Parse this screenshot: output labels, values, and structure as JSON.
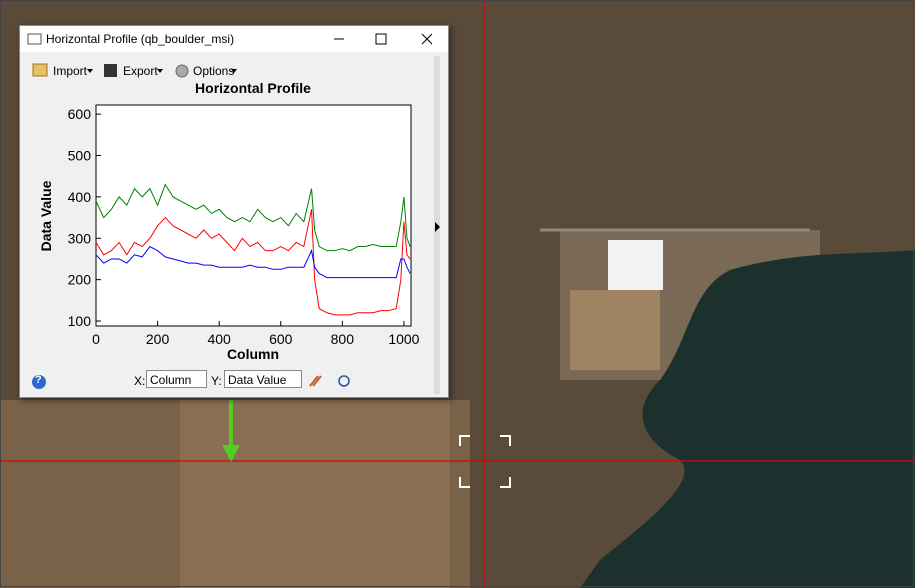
{
  "window": {
    "title": "Horizontal Profile (qb_boulder_msi)"
  },
  "toolbar": {
    "import": "Import",
    "export": "Export",
    "options": "Options"
  },
  "controls": {
    "help": "?",
    "x_label": "X:",
    "x_value": "Column",
    "y_label": "Y:",
    "y_value": "Data Value"
  },
  "chart_data": {
    "type": "line",
    "title": "Horizontal Profile",
    "x_label": "Column",
    "y_label": "Data Value",
    "x": [
      0,
      25,
      50,
      75,
      100,
      125,
      150,
      175,
      200,
      225,
      250,
      275,
      300,
      325,
      350,
      375,
      400,
      425,
      450,
      475,
      500,
      525,
      550,
      575,
      600,
      625,
      650,
      675,
      700,
      710,
      725,
      750,
      775,
      800,
      825,
      850,
      875,
      900,
      925,
      950,
      975,
      990,
      1000,
      1010,
      1020
    ],
    "series": [
      {
        "name": "Green",
        "color": "#008000",
        "values": [
          390,
          350,
          370,
          400,
          380,
          420,
          400,
          420,
          380,
          430,
          400,
          390,
          380,
          370,
          380,
          360,
          370,
          350,
          340,
          350,
          340,
          370,
          350,
          340,
          350,
          330,
          360,
          340,
          420,
          320,
          280,
          270,
          270,
          275,
          270,
          280,
          280,
          285,
          280,
          280,
          280,
          340,
          400,
          300,
          280
        ]
      },
      {
        "name": "Red",
        "color": "#ff0000",
        "values": [
          290,
          260,
          270,
          290,
          260,
          290,
          280,
          300,
          330,
          350,
          330,
          320,
          310,
          300,
          320,
          300,
          310,
          290,
          270,
          300,
          280,
          290,
          270,
          270,
          280,
          270,
          290,
          280,
          370,
          200,
          130,
          120,
          115,
          115,
          115,
          120,
          120,
          120,
          125,
          125,
          130,
          200,
          340,
          260,
          250
        ]
      },
      {
        "name": "Blue",
        "color": "#0000ff",
        "values": [
          260,
          240,
          250,
          250,
          240,
          260,
          255,
          280,
          270,
          255,
          250,
          245,
          240,
          240,
          235,
          235,
          230,
          230,
          230,
          230,
          235,
          230,
          230,
          225,
          225,
          230,
          230,
          230,
          270,
          230,
          215,
          205,
          205,
          205,
          205,
          205,
          205,
          205,
          205,
          205,
          205,
          250,
          250,
          230,
          215
        ]
      }
    ],
    "xlim": [
      0,
      1023
    ],
    "ylim": [
      88,
      622
    ],
    "xticks": [
      0,
      200,
      400,
      600,
      800,
      1000
    ],
    "yticks": [
      100,
      200,
      300,
      400,
      500,
      600
    ],
    "grid": false
  }
}
